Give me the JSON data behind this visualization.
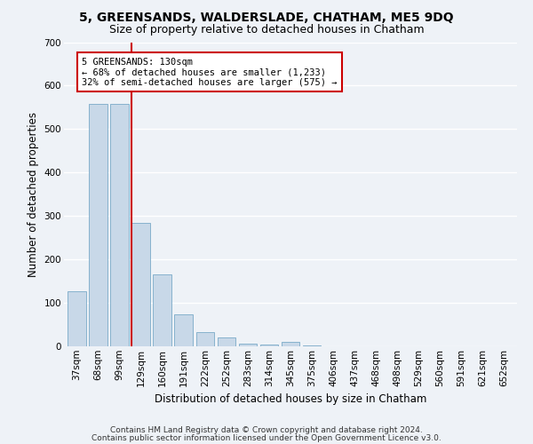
{
  "title": "5, GREENSANDS, WALDERSLADE, CHATHAM, ME5 9DQ",
  "subtitle": "Size of property relative to detached houses in Chatham",
  "xlabel": "Distribution of detached houses by size in Chatham",
  "ylabel": "Number of detached properties",
  "categories": [
    "37sqm",
    "68sqm",
    "99sqm",
    "129sqm",
    "160sqm",
    "191sqm",
    "222sqm",
    "252sqm",
    "283sqm",
    "314sqm",
    "345sqm",
    "375sqm",
    "406sqm",
    "437sqm",
    "468sqm",
    "498sqm",
    "529sqm",
    "560sqm",
    "591sqm",
    "621sqm",
    "652sqm"
  ],
  "values": [
    127,
    557,
    557,
    285,
    165,
    73,
    33,
    20,
    7,
    5,
    10,
    3,
    0,
    0,
    0,
    0,
    0,
    0,
    0,
    0,
    0
  ],
  "bar_color": "#c8d8e8",
  "bar_edge_color": "#7aaac8",
  "highlight_line_color": "#cc0000",
  "annotation_text": "5 GREENSANDS: 130sqm\n← 68% of detached houses are smaller (1,233)\n32% of semi-detached houses are larger (575) →",
  "annotation_box_color": "#ffffff",
  "annotation_box_edge_color": "#cc0000",
  "footer_line1": "Contains HM Land Registry data © Crown copyright and database right 2024.",
  "footer_line2": "Contains public sector information licensed under the Open Government Licence v3.0.",
  "ylim": [
    0,
    700
  ],
  "yticks": [
    0,
    100,
    200,
    300,
    400,
    500,
    600,
    700
  ],
  "bg_color": "#eef2f7",
  "plot_bg_color": "#eef2f7",
  "title_fontsize": 10,
  "subtitle_fontsize": 9,
  "axis_label_fontsize": 8.5,
  "tick_fontsize": 7.5,
  "footer_fontsize": 6.5
}
